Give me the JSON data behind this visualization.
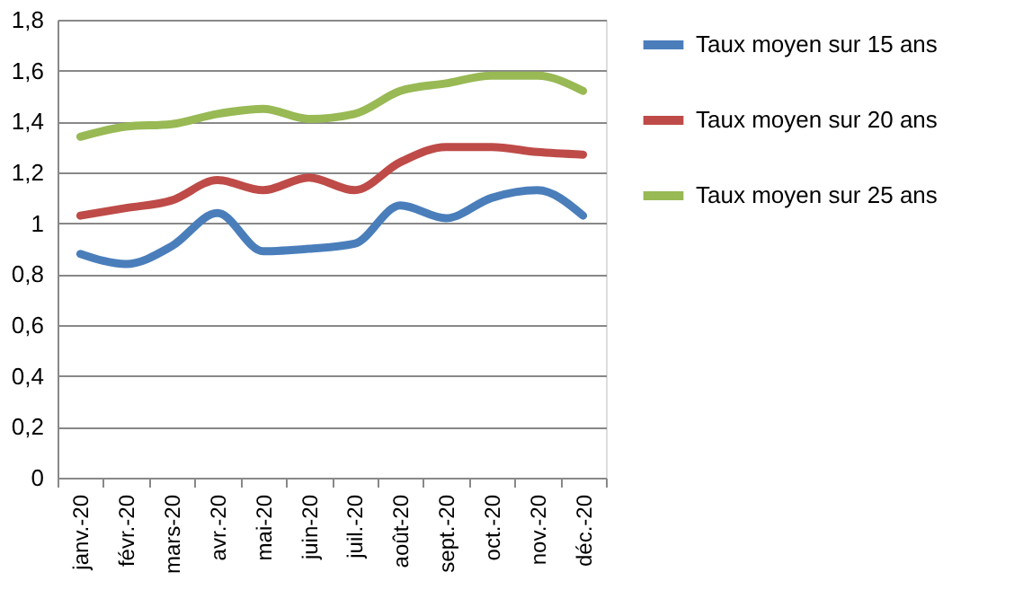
{
  "chart_data": {
    "type": "line",
    "categories": [
      "janv.-20",
      "févr.-20",
      "mars-20",
      "avr.-20",
      "mai-20",
      "juin-20",
      "juil.-20",
      "août-20",
      "sept.-20",
      "oct.-20",
      "nov.-20",
      "déc.-20"
    ],
    "series": [
      {
        "name": "Taux moyen sur 15 ans",
        "color": "#4a7ebb",
        "values": [
          0.88,
          0.84,
          0.91,
          1.04,
          0.89,
          0.9,
          0.92,
          1.07,
          1.02,
          1.1,
          1.13,
          1.03
        ]
      },
      {
        "name": "Taux moyen sur 20 ans",
        "color": "#be4b48",
        "values": [
          1.03,
          1.06,
          1.09,
          1.17,
          1.13,
          1.18,
          1.13,
          1.24,
          1.3,
          1.3,
          1.28,
          1.27
        ]
      },
      {
        "name": "Taux moyen sur 25 ans",
        "color": "#98b954",
        "values": [
          1.34,
          1.38,
          1.39,
          1.43,
          1.45,
          1.41,
          1.43,
          1.52,
          1.55,
          1.58,
          1.58,
          1.52
        ]
      }
    ],
    "ylim": [
      0,
      1.8
    ],
    "yticks": [
      0,
      {
        "value": 0.2,
        "label": "0,2"
      },
      {
        "value": 0.4,
        "label": "0,4"
      },
      {
        "value": 0.6,
        "label": "0,6"
      },
      {
        "value": 0.8,
        "label": "0,8"
      },
      1,
      {
        "value": 1.2,
        "label": "1,2"
      },
      {
        "value": 1.4,
        "label": "1,4"
      },
      {
        "value": 1.6,
        "label": "1,6"
      },
      {
        "value": 1.8,
        "label": "1,8"
      }
    ],
    "grid": "y",
    "legend": "right",
    "marker": "none",
    "line_style": "solid"
  }
}
